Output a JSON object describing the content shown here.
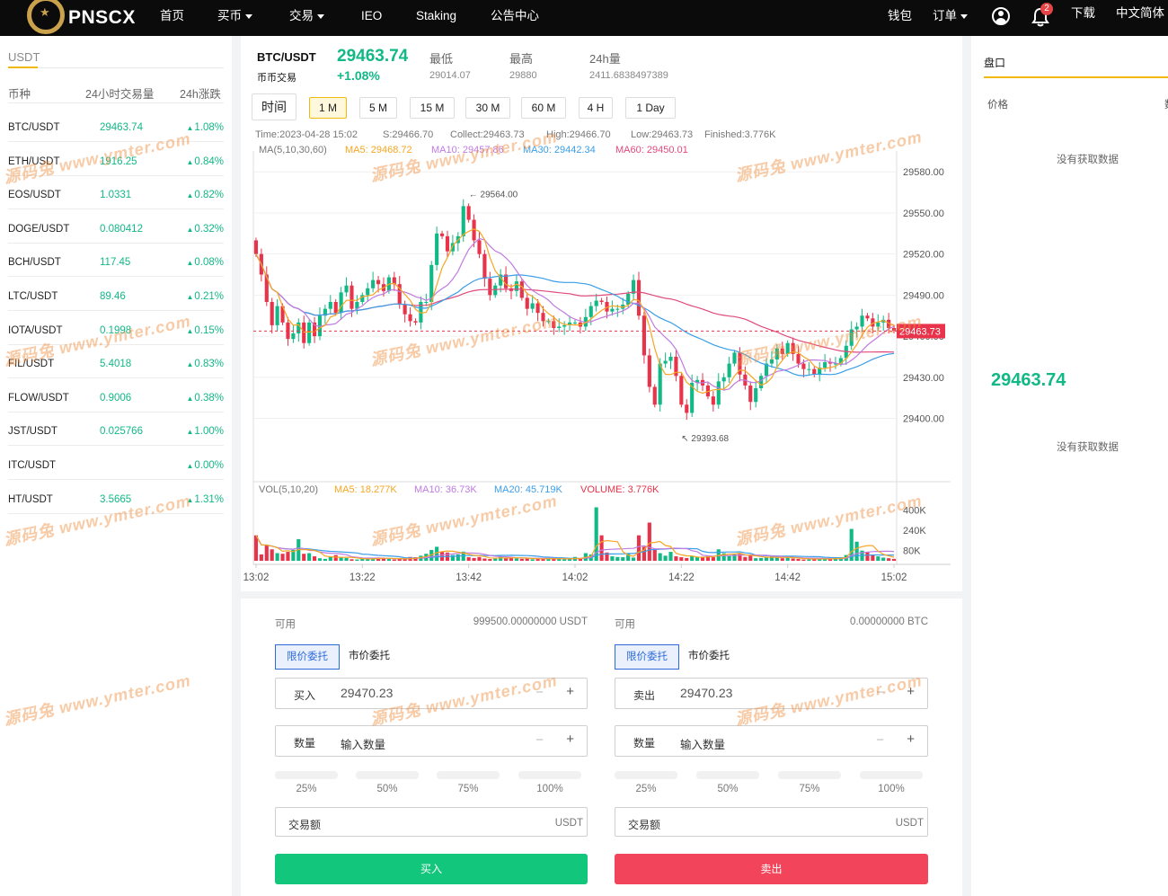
{
  "nav": {
    "brand": "PNSCX",
    "items": [
      "首页",
      "买币",
      "交易",
      "IEO",
      "Staking",
      "公告中心"
    ],
    "wallet": "钱包",
    "orders": "订单",
    "notif_count": "2",
    "download": "下载",
    "language": "中文简体"
  },
  "market": {
    "tab": "USDT",
    "headers": [
      "币种",
      "24小时交易量",
      "24h涨跌"
    ],
    "rows": [
      {
        "symbol": "BTC/USDT",
        "price": "29463.74",
        "change": "1.08%"
      },
      {
        "symbol": "ETH/USDT",
        "price": "1916.25",
        "change": "0.84%"
      },
      {
        "symbol": "EOS/USDT",
        "price": "1.0331",
        "change": "0.82%"
      },
      {
        "symbol": "DOGE/USDT",
        "price": "0.080412",
        "change": "0.32%"
      },
      {
        "symbol": "BCH/USDT",
        "price": "117.45",
        "change": "0.08%"
      },
      {
        "symbol": "LTC/USDT",
        "price": "89.46",
        "change": "0.21%"
      },
      {
        "symbol": "IOTA/USDT",
        "price": "0.1998",
        "change": "0.15%"
      },
      {
        "symbol": "FIL/USDT",
        "price": "5.4018",
        "change": "0.83%"
      },
      {
        "symbol": "FLOW/USDT",
        "price": "0.9006",
        "change": "0.38%"
      },
      {
        "symbol": "JST/USDT",
        "price": "0.025766",
        "change": "1.00%"
      },
      {
        "symbol": "ITC/USDT",
        "price": "",
        "change": "0.00%"
      },
      {
        "symbol": "HT/USDT",
        "price": "3.5665",
        "change": "1.31%"
      }
    ]
  },
  "ticker": {
    "symbol": "BTC/USDT",
    "subtitle": "币币交易",
    "price": "29463.74",
    "change": "+1.08%",
    "low_label": "最低",
    "low": "29014.07",
    "high_label": "最高",
    "high": "29880",
    "vol_label": "24h量",
    "vol": "2411.6838497389"
  },
  "timeframes": {
    "label": "时间",
    "items": [
      "1 M",
      "5 M",
      "15 M",
      "30 M",
      "60 M",
      "4 H",
      "1 Day"
    ],
    "active": "1 M"
  },
  "chart_info": {
    "time": "Time:2023-04-28 15:02",
    "start": "S:29466.70",
    "collect": "Collect:29463.73",
    "high": "High:29466.70",
    "low": "Low:29463.73",
    "finished": "Finished:3.776K",
    "ma_label": "MA(5,10,30,60)",
    "ma5": "MA5: 29468.72",
    "ma10": "MA10: 29457.86",
    "ma30": "MA30: 29442.34",
    "ma60": "MA60: 29450.01",
    "vol_label": "VOL(5,10,20)",
    "vma5": "MA5: 18.277K",
    "vma10": "MA10: 36.73K",
    "vma20": "MA20: 45.719K",
    "volume": "VOLUME: 3.776K",
    "last_price_tag": "29463.73",
    "max_label": "29564.00",
    "min_label": "29393.68"
  },
  "colors": {
    "up": "#12b886",
    "down": "#e8334a",
    "ma5": "#f5a623",
    "ma10": "#c07be0",
    "ma30": "#3a9ee8",
    "ma60": "#e04a7b",
    "accent": "#f0b90b"
  },
  "chart_data": {
    "type": "candlestick",
    "y_ticks": [
      "29580.00",
      "29550.00",
      "29520.00",
      "29490.00",
      "29460.00",
      "29430.00",
      "29400.00"
    ],
    "ylim": [
      29380,
      29590
    ],
    "vol_ticks": [
      "400K",
      "240K",
      "80K"
    ],
    "vol_lim": [
      0,
      480
    ],
    "x_ticks": [
      "13:02",
      "13:22",
      "13:42",
      "14:02",
      "14:22",
      "14:42",
      "15:02"
    ],
    "x_tick_index": [
      0,
      20,
      40,
      60,
      80,
      100,
      120
    ],
    "close": [
      29520,
      29505,
      29485,
      29468,
      29482,
      29470,
      29458,
      29462,
      29470,
      29455,
      29470,
      29460,
      29475,
      29480,
      29485,
      29477,
      29492,
      29497,
      29480,
      29485,
      29490,
      29495,
      29501,
      29498,
      29493,
      29503,
      29498,
      29483,
      29476,
      29471,
      29470,
      29485,
      29485,
      29512,
      29535,
      29533,
      29522,
      29528,
      29533,
      29555,
      29545,
      29530,
      29520,
      29502,
      29490,
      29497,
      29505,
      29495,
      29493,
      29500,
      29488,
      29480,
      29484,
      29477,
      29471,
      29471,
      29466,
      29467,
      29468,
      29470,
      29470,
      29467,
      29474,
      29482,
      29486,
      29485,
      29478,
      29480,
      29480,
      29483,
      29491,
      29501,
      29475,
      29446,
      29423,
      29410,
      29440,
      29442,
      29445,
      29431,
      29410,
      29404,
      29426,
      29428,
      29424,
      29416,
      29410,
      29427,
      29430,
      29440,
      29448,
      29432,
      29424,
      29412,
      29422,
      29431,
      29440,
      29443,
      29451,
      29447,
      29455,
      29447,
      29440,
      29436,
      29436,
      29432,
      29437,
      29441,
      29440,
      29440,
      29444,
      29453,
      29465,
      29467,
      29475,
      29473,
      29467,
      29470,
      29472,
      29466,
      29464
    ],
    "ma_series": [
      "MA5",
      "MA10",
      "MA30",
      "MA60"
    ],
    "volume": [
      200,
      50,
      120,
      90,
      60,
      55,
      70,
      85,
      170,
      55,
      60,
      35,
      20,
      15,
      30,
      45,
      25,
      22,
      12,
      10,
      15,
      20,
      18,
      25,
      22,
      14,
      10,
      16,
      12,
      30,
      28,
      40,
      55,
      85,
      110,
      70,
      65,
      45,
      50,
      72,
      28,
      22,
      30,
      18,
      14,
      17,
      36,
      22,
      26,
      18,
      15,
      22,
      12,
      14,
      16,
      20,
      18,
      15,
      12,
      14,
      30,
      18,
      60,
      50,
      420,
      200,
      65,
      35,
      30,
      28,
      60,
      25,
      200,
      110,
      300,
      90,
      60,
      40,
      70,
      35,
      28,
      22,
      35,
      30,
      25,
      40,
      28,
      90,
      60,
      42,
      50,
      55,
      30,
      40,
      20,
      22,
      25,
      35,
      30,
      20,
      25,
      18,
      14,
      10,
      12,
      18,
      16,
      15,
      12,
      22,
      28,
      45,
      250,
      150,
      80,
      70,
      45,
      35,
      25,
      20,
      15
    ]
  },
  "orderbook": {
    "title": "盘口",
    "col_price": "价格",
    "col_qty": "数",
    "nodata_top": "没有获取数据",
    "mid_price": "29463.74",
    "nodata_bottom": "没有获取数据"
  },
  "buy": {
    "avail_label": "可用",
    "avail_value": "999500.00000000 USDT",
    "tab_limit": "限价委托",
    "tab_market": "市价委托",
    "price_label": "买入",
    "price_value": "29470.23",
    "qty_label": "数量",
    "qty_placeholder": "输入数量",
    "pcts": [
      "25%",
      "50%",
      "75%",
      "100%"
    ],
    "total_label": "交易额",
    "total_unit": "USDT",
    "button": "买入"
  },
  "sell": {
    "avail_label": "可用",
    "avail_value": "0.00000000 BTC",
    "tab_limit": "限价委托",
    "tab_market": "市价委托",
    "price_label": "卖出",
    "price_value": "29470.23",
    "qty_label": "数量",
    "qty_placeholder": "输入数量",
    "pcts": [
      "25%",
      "50%",
      "75%",
      "100%"
    ],
    "total_label": "交易额",
    "total_unit": "USDT",
    "button": "卖出"
  },
  "watermark": "源码兔 www.ymter.com"
}
